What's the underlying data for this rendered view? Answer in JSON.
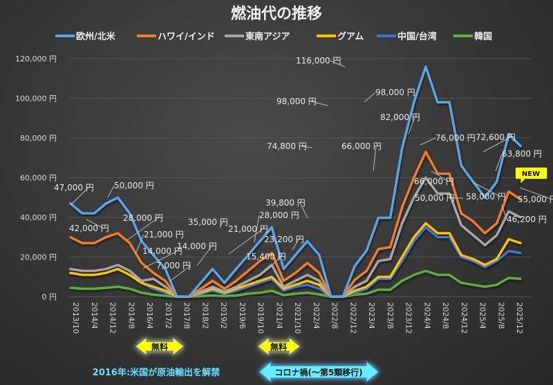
{
  "chart_data": {
    "type": "line",
    "title": "燃油代の推移",
    "xlabel": "",
    "ylabel": "",
    "ylim": [
      0,
      120000
    ],
    "yticks": [
      {
        "value": 0,
        "label": "0 円"
      },
      {
        "value": 20000,
        "label": "20,000 円"
      },
      {
        "value": 40000,
        "label": "40,000 円"
      },
      {
        "value": 60000,
        "label": "60,000 円"
      },
      {
        "value": 80000,
        "label": "80,000 円"
      },
      {
        "value": 100000,
        "label": "100,000 円"
      },
      {
        "value": 120000,
        "label": "120,000 円"
      }
    ],
    "grid": true,
    "legend_position": "top",
    "x_tick_labels": [
      "2013/10",
      "2014/4",
      "2014/12",
      "2014/8",
      "2016/4",
      "2017/2",
      "2017/8",
      "2018/2",
      "2019/2",
      "2019/6",
      "2019/10",
      "2021/4",
      "2021/10",
      "2022/4",
      "2022/8",
      "2022/12",
      "2023/4",
      "2023/8",
      "2023/12",
      "2024/4",
      "2024/8",
      "2024/12",
      "2025/4",
      "2025/8",
      "2025/12"
    ],
    "n_points": 39,
    "series": [
      {
        "name": "欧州/北米",
        "color": "#5aa5e6",
        "values": [
          47000,
          42000,
          42000,
          47000,
          50000,
          42000,
          28000,
          21000,
          14000,
          0,
          0,
          7000,
          14000,
          7000,
          14000,
          21000,
          28000,
          35000,
          14000,
          21000,
          28000,
          21000,
          0,
          0,
          15400,
          23200,
          39800,
          39800,
          74800,
          98000,
          116000,
          98000,
          98000,
          66000,
          58000,
          50000,
          58000,
          82000,
          76000
        ]
      },
      {
        "name": "ハワイ/インド",
        "color": "#f07c2c",
        "values": [
          30000,
          27000,
          27000,
          30000,
          32000,
          27000,
          17000,
          12000,
          8000,
          0,
          0,
          4000,
          8000,
          4000,
          8000,
          13000,
          18000,
          22000,
          8000,
          12000,
          17000,
          12000,
          0,
          0,
          8500,
          13000,
          24000,
          25000,
          45000,
          60000,
          73000,
          62000,
          62000,
          42000,
          38000,
          32000,
          37000,
          53000,
          49000
        ]
      },
      {
        "name": "東南アジア",
        "color": "#a6a6a6",
        "values": [
          14000,
          13000,
          13000,
          14000,
          16000,
          13000,
          8000,
          9000,
          5000,
          0,
          0,
          2500,
          5000,
          2500,
          5000,
          8000,
          11000,
          16000,
          5000,
          8000,
          11000,
          8000,
          0,
          0,
          5000,
          8000,
          18000,
          19000,
          37000,
          50000,
          60000,
          52000,
          52000,
          36000,
          31000,
          26000,
          31000,
          43000,
          40000
        ]
      },
      {
        "name": "グアム",
        "color": "#ffc000",
        "values": [
          12000,
          11000,
          11000,
          12000,
          14000,
          11000,
          7000,
          5000,
          3000,
          0,
          0,
          2000,
          4000,
          2000,
          4000,
          6000,
          8000,
          10000,
          4000,
          6000,
          8000,
          6000,
          0,
          0,
          3000,
          5000,
          10000,
          10000,
          20000,
          30000,
          37000,
          32000,
          32000,
          21000,
          19000,
          16000,
          19000,
          29000,
          27000
        ]
      },
      {
        "name": "中国/台湾",
        "color": "#3d75d4",
        "values": [
          12000,
          11000,
          11000,
          12000,
          14000,
          11000,
          7000,
          4000,
          2000,
          0,
          0,
          1500,
          3000,
          1500,
          3000,
          5000,
          7000,
          9000,
          3000,
          5000,
          6000,
          4000,
          0,
          0,
          2000,
          4000,
          9000,
          9000,
          18000,
          28000,
          35000,
          30000,
          30000,
          20000,
          18000,
          15000,
          18000,
          23000,
          22000
        ]
      },
      {
        "name": "韓国",
        "color": "#5fae3a",
        "values": [
          4500,
          4000,
          4000,
          4500,
          5000,
          4000,
          2000,
          1000,
          500,
          0,
          0,
          300,
          600,
          300,
          600,
          1500,
          2000,
          3000,
          800,
          1500,
          2000,
          1200,
          0,
          0,
          1000,
          1500,
          3500,
          3500,
          8000,
          11000,
          13000,
          11000,
          11000,
          7000,
          6000,
          5000,
          6000,
          9500,
          9000
        ]
      }
    ],
    "data_labels": [
      {
        "text": "47,000 円"
      },
      {
        "text": "42,000 円"
      },
      {
        "text": "50,000 円"
      },
      {
        "text": "28,000 円"
      },
      {
        "text": "21,000 円"
      },
      {
        "text": "14,000 円"
      },
      {
        "text": "7,000 円"
      },
      {
        "text": "14,000 円"
      },
      {
        "text": "35,000 円"
      },
      {
        "text": "21,000 円"
      },
      {
        "text": "28,000 円"
      },
      {
        "text": "15,400 円"
      },
      {
        "text": "23,200 円"
      },
      {
        "text": "39,800 円"
      },
      {
        "text": "74,800 円"
      },
      {
        "text": "98,000 円"
      },
      {
        "text": "116,000 円"
      },
      {
        "text": "98,000 円"
      },
      {
        "text": "66,000 円"
      },
      {
        "text": "82,000 円"
      },
      {
        "text": "76,000 円"
      },
      {
        "text": "66,000 円"
      },
      {
        "text": "50,000 円"
      },
      {
        "text": "58,000 円"
      },
      {
        "text": "72,600 円"
      },
      {
        "text": "63,800 円"
      },
      {
        "text": "55,000 円"
      },
      {
        "text": "46,200 円"
      }
    ],
    "annotations": {
      "free_label_1": "無料",
      "free_label_2": "無料",
      "note_2016": "2016年:米国が原油輸出を解禁",
      "covid_label": "コロナ禍(〜第5類移行)",
      "new_badge": "NEW"
    }
  }
}
